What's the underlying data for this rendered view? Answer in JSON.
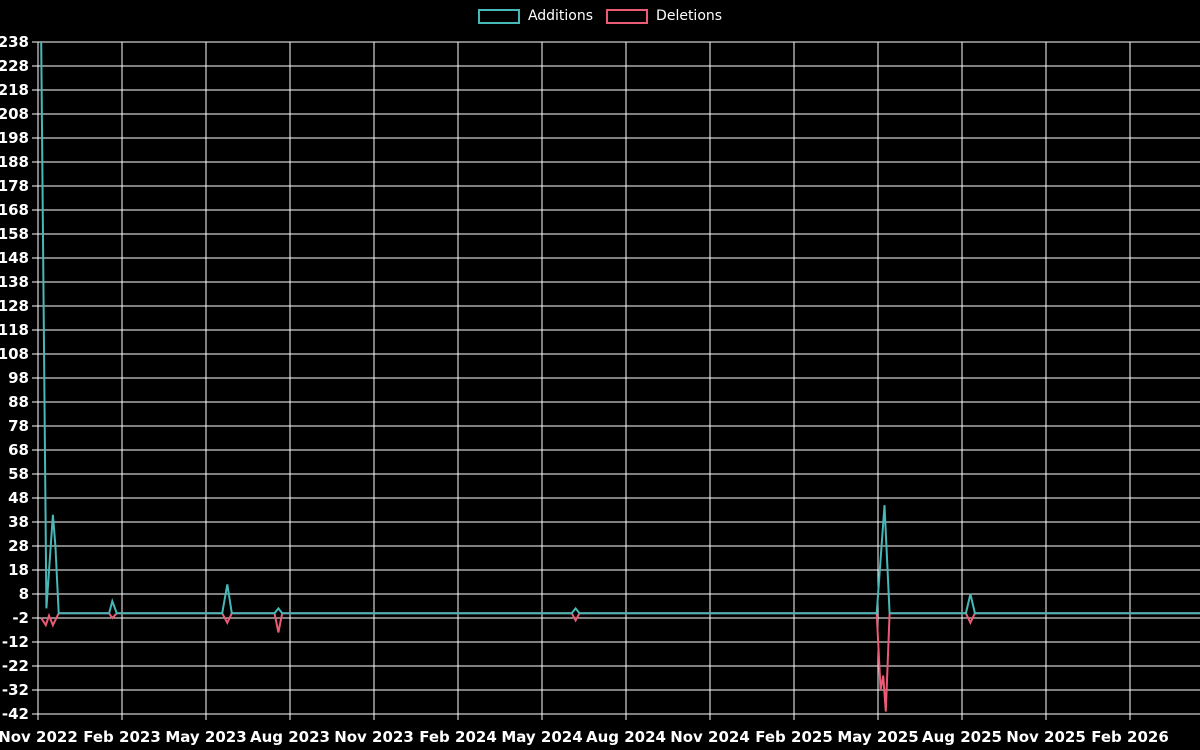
{
  "legend": {
    "items": [
      {
        "label": "Additions",
        "color": "#46b8b8"
      },
      {
        "label": "Deletions",
        "color": "#ec5b76"
      }
    ]
  },
  "chart_data": {
    "type": "line",
    "title": "",
    "xlabel": "",
    "ylabel": "",
    "background_color": "#000000",
    "grid_color": "#ffffff",
    "text_color": "#ffffff",
    "grid": true,
    "legend_position": "top-center",
    "ylim": [
      -42,
      238
    ],
    "y_tick_step": 10,
    "y_ticks": [
      238,
      228,
      218,
      208,
      198,
      188,
      178,
      168,
      158,
      148,
      138,
      128,
      118,
      108,
      98,
      88,
      78,
      68,
      58,
      48,
      38,
      28,
      18,
      8,
      -2,
      -12,
      -22,
      -32,
      -42
    ],
    "x_unit": "weeks since Nov 2022",
    "x_tick_weeks": [
      0,
      13,
      26,
      39,
      52,
      65,
      78,
      91,
      104,
      117,
      130,
      143,
      156,
      169
    ],
    "x_tick_labels": [
      "Nov 2022",
      "Feb 2023",
      "May 2023",
      "Aug 2023",
      "Nov 2023",
      "Feb 2024",
      "May 2024",
      "Aug 2024",
      "Nov 2024",
      "Feb 2025",
      "May 2025",
      "Aug 2025",
      "Nov 2025",
      "Feb 2026"
    ],
    "series": [
      {
        "name": "Deletions",
        "color": "#ec5b76",
        "points": [
          [
            0.5,
            -2
          ],
          [
            1.2,
            -5
          ],
          [
            1.7,
            -1
          ],
          [
            2.3,
            -5
          ],
          [
            3.2,
            0
          ],
          [
            11.0,
            0
          ],
          [
            11.5,
            -2
          ],
          [
            12.2,
            0
          ],
          [
            28.5,
            0
          ],
          [
            29.3,
            -4
          ],
          [
            30.0,
            0
          ],
          [
            36.6,
            0
          ],
          [
            37.2,
            -8
          ],
          [
            37.8,
            0
          ],
          [
            82.6,
            0
          ],
          [
            83.2,
            -3
          ],
          [
            83.8,
            0
          ],
          [
            129.8,
            0
          ],
          [
            130.4,
            -32
          ],
          [
            130.8,
            -26
          ],
          [
            131.2,
            -41
          ],
          [
            131.8,
            0
          ],
          [
            143.6,
            0
          ],
          [
            144.3,
            -4
          ],
          [
            145.0,
            0
          ],
          [
            180,
            0
          ]
        ]
      },
      {
        "name": "Additions",
        "color": "#46b8b8",
        "points": [
          [
            0.5,
            238
          ],
          [
            1.3,
            2
          ],
          [
            2.3,
            41
          ],
          [
            2.7,
            28
          ],
          [
            3.2,
            0
          ],
          [
            11.0,
            0
          ],
          [
            11.5,
            5
          ],
          [
            12.2,
            0
          ],
          [
            28.5,
            0
          ],
          [
            29.3,
            12
          ],
          [
            30.0,
            0
          ],
          [
            36.6,
            0
          ],
          [
            37.2,
            2
          ],
          [
            37.8,
            0
          ],
          [
            82.6,
            0
          ],
          [
            83.2,
            2
          ],
          [
            83.8,
            0
          ],
          [
            129.8,
            0
          ],
          [
            130.5,
            26
          ],
          [
            131.0,
            45
          ],
          [
            131.8,
            0
          ],
          [
            143.6,
            0
          ],
          [
            144.3,
            8
          ],
          [
            145.0,
            0
          ],
          [
            180,
            0
          ]
        ]
      }
    ]
  }
}
